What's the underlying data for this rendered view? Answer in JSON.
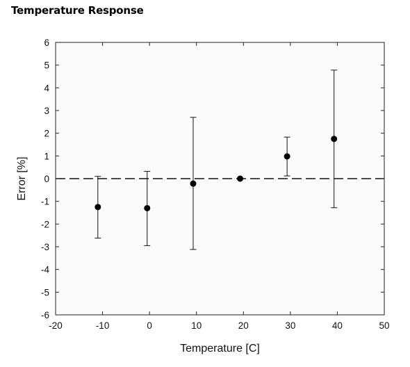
{
  "page": {
    "title": "Temperature Response"
  },
  "chart_data": {
    "type": "scatter",
    "title": "Temperature Response",
    "xlabel": "Temperature [C]",
    "ylabel": "Error [%]",
    "xlim": [
      -20,
      50
    ],
    "ylim": [
      -6,
      6
    ],
    "xticks": [
      -20,
      -10,
      0,
      10,
      20,
      30,
      40,
      50
    ],
    "yticks": [
      -6,
      -5,
      -4,
      -3,
      -2,
      -1,
      0,
      1,
      2,
      3,
      4,
      5,
      6
    ],
    "grid": false,
    "reference_line": {
      "y": 0,
      "style": "dashed"
    },
    "series": [
      {
        "points": [
          {
            "x": -11,
            "y": -1.25,
            "ylow": -2.62,
            "yhigh": 0.1
          },
          {
            "x": -0.5,
            "y": -1.3,
            "ylow": -2.95,
            "yhigh": 0.32
          },
          {
            "x": 9.3,
            "y": -0.22,
            "ylow": -3.12,
            "yhigh": 2.7
          },
          {
            "x": 19.3,
            "y": 0.0,
            "ylow": 0.0,
            "yhigh": 0.0
          },
          {
            "x": 29.3,
            "y": 0.98,
            "ylow": 0.12,
            "yhigh": 1.83
          },
          {
            "x": 39.3,
            "y": 1.75,
            "ylow": -1.28,
            "yhigh": 4.78
          }
        ]
      }
    ],
    "colors": {
      "marker": "#000000",
      "background": "#fbfbfb"
    }
  }
}
